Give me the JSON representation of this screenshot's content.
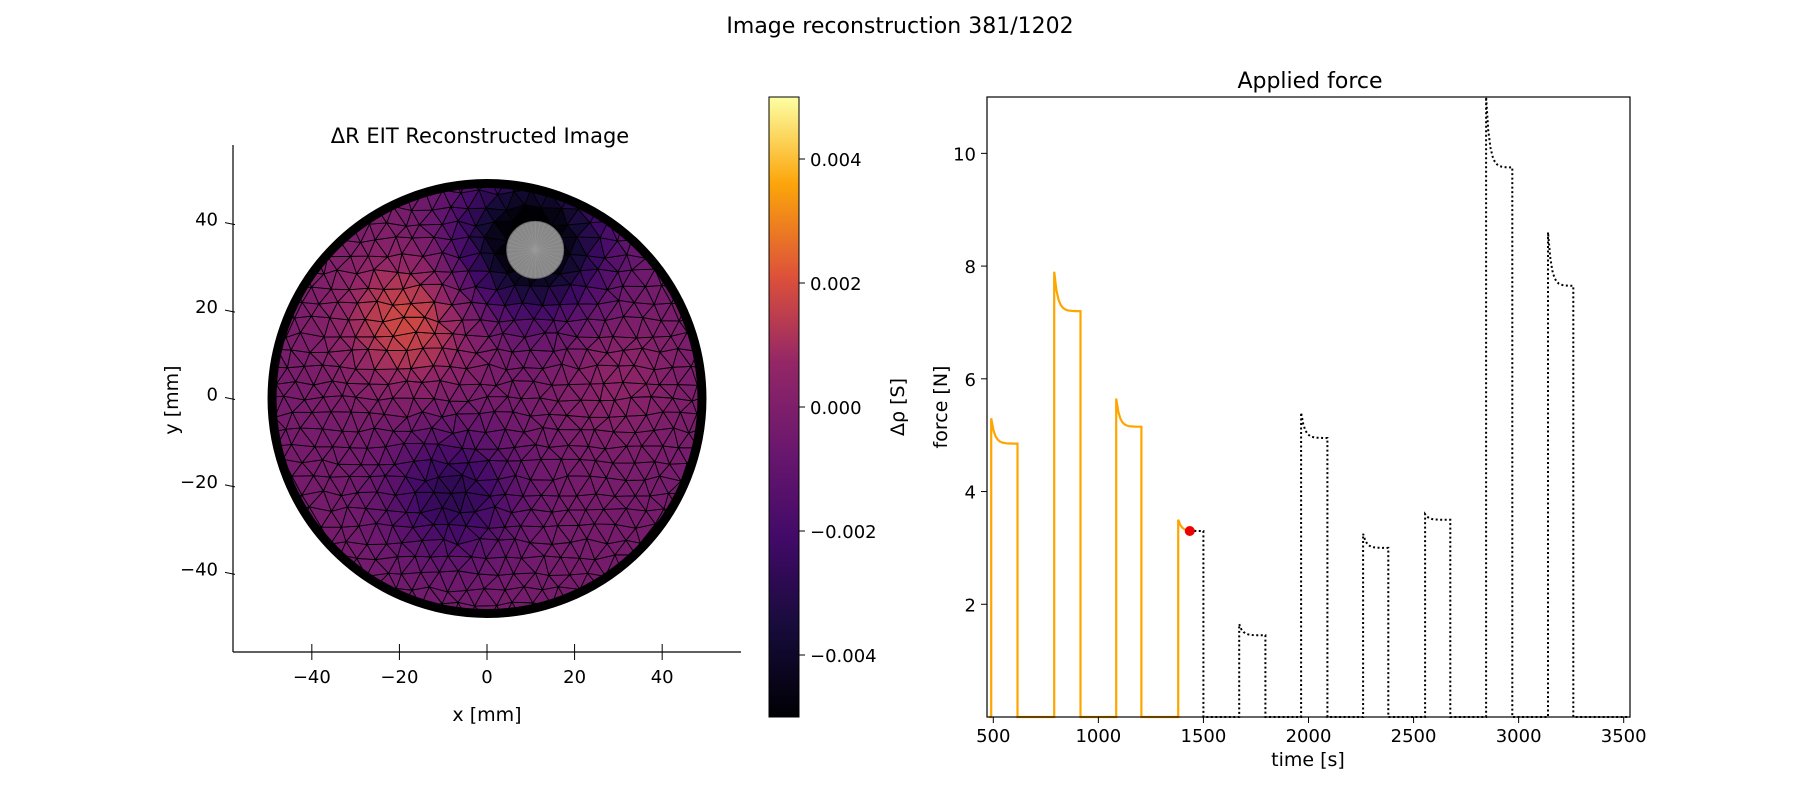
{
  "figure": {
    "suptitle": "Image reconstruction 381/1202"
  },
  "chart_data": [
    {
      "type": "heatmap",
      "title": "ΔR EIT Reconstructed Image",
      "xlabel": "x [mm]",
      "ylabel": "y [mm]",
      "xlim": [
        -58,
        58
      ],
      "ylim": [
        -58,
        58
      ],
      "xticks": [
        -40,
        -20,
        0,
        20,
        40
      ],
      "yticks": [
        -40,
        -20,
        0,
        20,
        40
      ],
      "xtick_labels": [
        "−40",
        "−20",
        "0",
        "20",
        "40"
      ],
      "ytick_labels": [
        "−40",
        "−20",
        "0",
        "20",
        "40"
      ],
      "domain": {
        "shape": "circle",
        "center": [
          0,
          0
        ],
        "radius": 50
      },
      "inclusion": {
        "center": [
          11,
          34
        ],
        "radius": 6.5,
        "color": "#888888"
      },
      "features": [
        {
          "label": "low",
          "center": [
            10,
            36
          ],
          "radius": 18,
          "value": -0.0055
        },
        {
          "label": "high",
          "center": [
            -18,
            18
          ],
          "radius": 18,
          "value": 0.0022
        },
        {
          "label": "low",
          "center": [
            -8,
            -22
          ],
          "radius": 16,
          "value": -0.0025
        },
        {
          "label": "high",
          "center": [
            30,
            5
          ],
          "radius": 16,
          "value": 0.0008
        }
      ],
      "background_value": -0.0003,
      "colorbar": {
        "label": "Δρ [S]",
        "colormap": "inferno",
        "vmin": -0.005,
        "vmax": 0.005,
        "ticks": [
          0.004,
          0.002,
          0.0,
          -0.002,
          -0.004
        ],
        "tick_labels": [
          "0.004",
          "0.002",
          "0.000",
          "−0.002",
          "−0.004"
        ]
      }
    },
    {
      "type": "line",
      "title": "Applied force",
      "xlabel": "time [s]",
      "ylabel": "force [N]",
      "xlim": [
        470,
        3530
      ],
      "ylim": [
        0,
        11
      ],
      "xticks": [
        500,
        1000,
        1500,
        2000,
        2500,
        3000,
        3500
      ],
      "xtick_labels": [
        "500",
        "1000",
        "1500",
        "2000",
        "2500",
        "3000",
        "3500"
      ],
      "yticks": [
        2,
        4,
        6,
        8,
        10
      ],
      "ytick_labels": [
        "2",
        "4",
        "6",
        "8",
        "10"
      ],
      "steps": [
        {
          "start": 490,
          "end": 615,
          "peak": 5.3,
          "plateau": 4.85
        },
        {
          "start": 790,
          "end": 915,
          "peak": 7.9,
          "plateau": 7.2
        },
        {
          "start": 1085,
          "end": 1205,
          "peak": 5.65,
          "plateau": 5.15
        },
        {
          "start": 1380,
          "end": 1500,
          "peak": 3.5,
          "plateau": 3.3
        },
        {
          "start": 1670,
          "end": 1795,
          "peak": 1.65,
          "plateau": 1.45
        },
        {
          "start": 1965,
          "end": 2090,
          "peak": 5.4,
          "plateau": 4.95
        },
        {
          "start": 2260,
          "end": 2380,
          "peak": 3.25,
          "plateau": 3.0
        },
        {
          "start": 2555,
          "end": 2675,
          "peak": 3.6,
          "plateau": 3.5
        },
        {
          "start": 2845,
          "end": 2970,
          "peak": 11.0,
          "plateau": 9.75
        },
        {
          "start": 3140,
          "end": 3260,
          "peak": 8.6,
          "plateau": 7.65
        }
      ],
      "baseline": 0.0,
      "trace_end": 3530,
      "progress_time": 1435,
      "marker": {
        "x": 1435,
        "y": 3.3,
        "color": "#ee0000"
      },
      "colors": {
        "past": "#ffa500",
        "future": "#000000"
      }
    }
  ]
}
